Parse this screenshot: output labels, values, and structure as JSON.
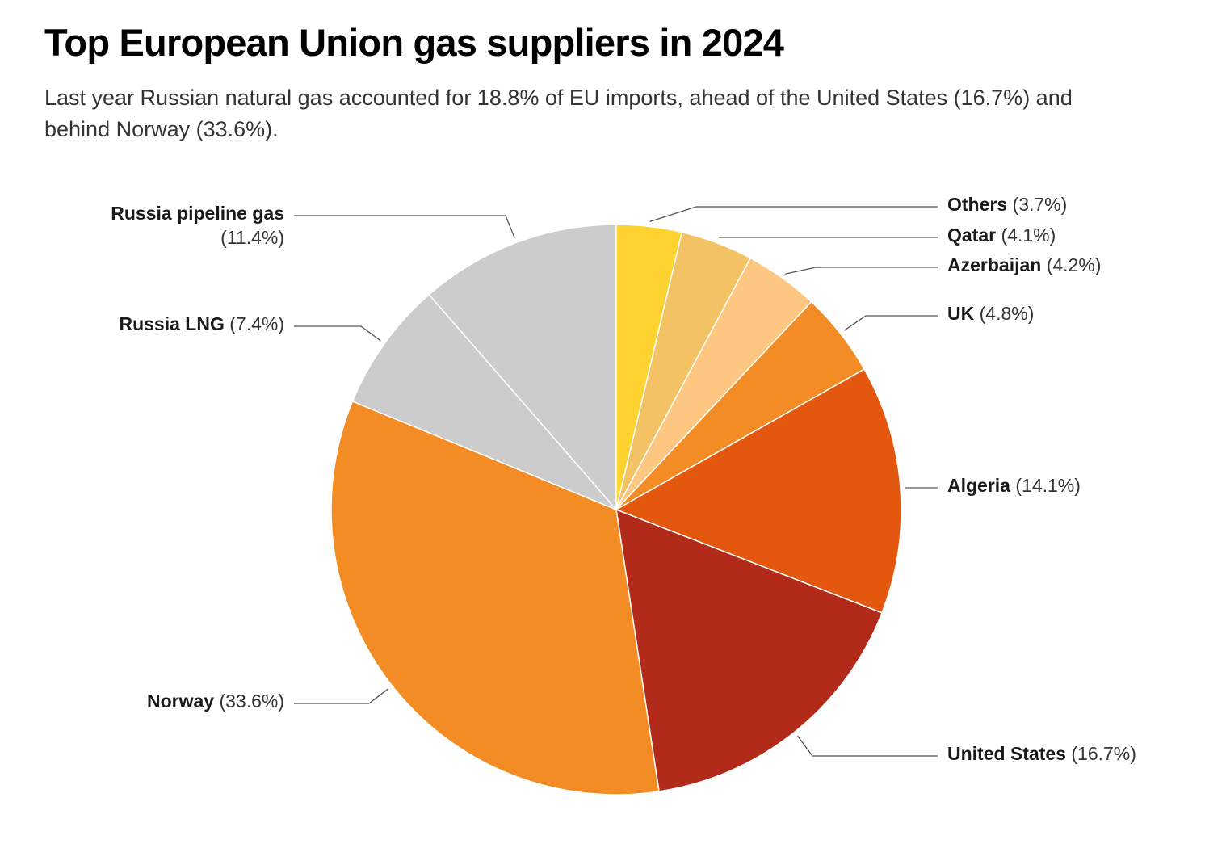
{
  "chart_data": {
    "type": "pie",
    "title": "Top European Union gas suppliers in 2024",
    "subtitle": "Last year Russian natural gas accounted for 18.8% of EU imports, ahead of the United States (16.7%) and behind Norway (33.6%).",
    "unit": "%",
    "slices": [
      {
        "name": "Others",
        "value": 3.7,
        "value_label": "(3.7%)",
        "color": "#fed330"
      },
      {
        "name": "Qatar",
        "value": 4.1,
        "value_label": "(4.1%)",
        "color": "#f2c265"
      },
      {
        "name": "Azerbaijan",
        "value": 4.2,
        "value_label": "(4.2%)",
        "color": "#fec781"
      },
      {
        "name": "UK",
        "value": 4.8,
        "value_label": "(4.8%)",
        "color": "#f48c25"
      },
      {
        "name": "Algeria",
        "value": 14.1,
        "value_label": "(14.1%)",
        "color": "#e4570e"
      },
      {
        "name": "United States",
        "value": 16.7,
        "value_label": "(16.7%)",
        "color": "#b12a1a"
      },
      {
        "name": "Norway",
        "value": 33.6,
        "value_label": "(33.6%)",
        "color": "#f48c25"
      },
      {
        "name": "Russia LNG",
        "value": 7.4,
        "value_label": "(7.4%)",
        "color": "#cccccc"
      },
      {
        "name": "Russia pipeline gas",
        "value": 11.4,
        "value_label": "(11.4%)",
        "color": "#cccccc"
      }
    ]
  }
}
